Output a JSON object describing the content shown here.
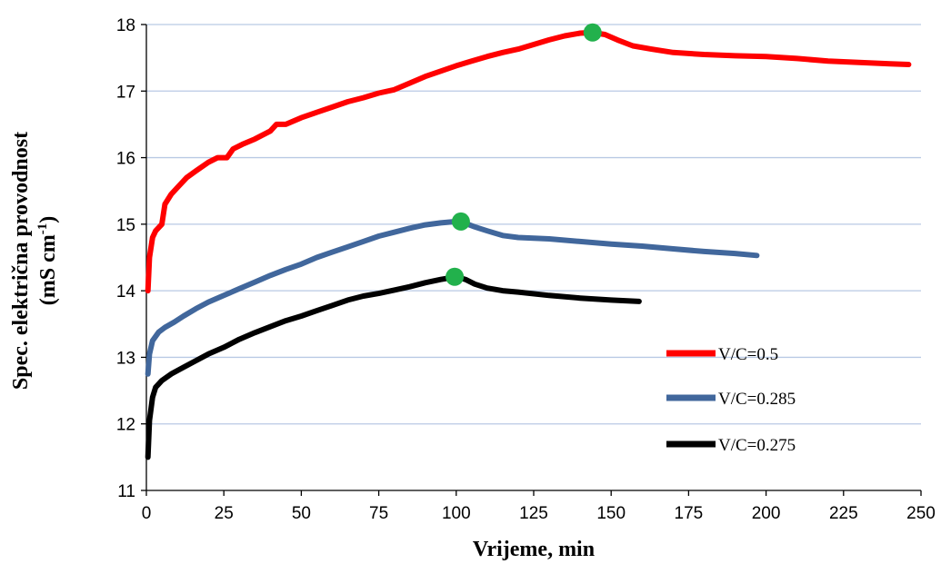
{
  "chart_data": {
    "type": "line",
    "xlabel": "Vrijeme, min",
    "ylabel_line1": "Spec. električna provodnost",
    "ylabel_line2_pre": "(mS cm",
    "ylabel_line2_sup": "-1",
    "ylabel_line2_post": ")",
    "xlim": [
      0,
      250
    ],
    "ylim": [
      11,
      18
    ],
    "xticks": [
      "0",
      "25",
      "50",
      "75",
      "100",
      "125",
      "150",
      "175",
      "200",
      "225",
      "250"
    ],
    "yticks": [
      "11",
      "12",
      "13",
      "14",
      "15",
      "16",
      "17",
      "18"
    ],
    "grid": "horizontal",
    "legend_position": "right",
    "series": [
      {
        "name": "V/C=0.5",
        "color": "#ff0000",
        "points": [
          [
            0.5,
            14.0
          ],
          [
            1,
            14.5
          ],
          [
            2,
            14.8
          ],
          [
            3,
            14.9
          ],
          [
            5,
            15.0
          ],
          [
            6,
            15.3
          ],
          [
            8,
            15.45
          ],
          [
            10,
            15.55
          ],
          [
            13,
            15.7
          ],
          [
            16,
            15.8
          ],
          [
            20,
            15.93
          ],
          [
            23,
            16.0
          ],
          [
            26,
            16.0
          ],
          [
            28,
            16.13
          ],
          [
            31,
            16.2
          ],
          [
            35,
            16.28
          ],
          [
            40,
            16.4
          ],
          [
            42,
            16.5
          ],
          [
            45,
            16.5
          ],
          [
            50,
            16.6
          ],
          [
            55,
            16.68
          ],
          [
            60,
            16.76
          ],
          [
            65,
            16.84
          ],
          [
            70,
            16.9
          ],
          [
            75,
            16.97
          ],
          [
            80,
            17.02
          ],
          [
            85,
            17.12
          ],
          [
            90,
            17.22
          ],
          [
            95,
            17.3
          ],
          [
            100,
            17.38
          ],
          [
            105,
            17.45
          ],
          [
            110,
            17.52
          ],
          [
            115,
            17.58
          ],
          [
            120,
            17.63
          ],
          [
            125,
            17.7
          ],
          [
            130,
            17.77
          ],
          [
            135,
            17.83
          ],
          [
            140,
            17.87
          ],
          [
            144,
            17.88
          ],
          [
            148,
            17.85
          ],
          [
            152,
            17.77
          ],
          [
            157,
            17.68
          ],
          [
            163,
            17.63
          ],
          [
            170,
            17.58
          ],
          [
            180,
            17.55
          ],
          [
            190,
            17.53
          ],
          [
            200,
            17.52
          ],
          [
            210,
            17.49
          ],
          [
            220,
            17.45
          ],
          [
            230,
            17.43
          ],
          [
            240,
            17.41
          ],
          [
            246,
            17.4
          ]
        ]
      },
      {
        "name": "V/C=0.285",
        "color": "#41679c",
        "points": [
          [
            0.5,
            12.75
          ],
          [
            1,
            13.05
          ],
          [
            2,
            13.25
          ],
          [
            4,
            13.38
          ],
          [
            6,
            13.45
          ],
          [
            9,
            13.53
          ],
          [
            12,
            13.62
          ],
          [
            16,
            13.73
          ],
          [
            20,
            13.83
          ],
          [
            25,
            13.93
          ],
          [
            30,
            14.03
          ],
          [
            35,
            14.13
          ],
          [
            40,
            14.23
          ],
          [
            45,
            14.32
          ],
          [
            50,
            14.4
          ],
          [
            55,
            14.5
          ],
          [
            60,
            14.58
          ],
          [
            65,
            14.66
          ],
          [
            70,
            14.74
          ],
          [
            75,
            14.82
          ],
          [
            80,
            14.88
          ],
          [
            85,
            14.94
          ],
          [
            90,
            14.99
          ],
          [
            95,
            15.02
          ],
          [
            100,
            15.04
          ],
          [
            102,
            15.03
          ],
          [
            106,
            14.96
          ],
          [
            110,
            14.9
          ],
          [
            115,
            14.83
          ],
          [
            120,
            14.8
          ],
          [
            130,
            14.78
          ],
          [
            140,
            14.74
          ],
          [
            150,
            14.7
          ],
          [
            160,
            14.67
          ],
          [
            170,
            14.63
          ],
          [
            180,
            14.59
          ],
          [
            190,
            14.56
          ],
          [
            197,
            14.53
          ]
        ]
      },
      {
        "name": "V/C=0.275",
        "color": "#000000",
        "points": [
          [
            0.5,
            11.5
          ],
          [
            1,
            12.05
          ],
          [
            2,
            12.4
          ],
          [
            3,
            12.55
          ],
          [
            5,
            12.65
          ],
          [
            8,
            12.75
          ],
          [
            12,
            12.85
          ],
          [
            16,
            12.95
          ],
          [
            20,
            13.05
          ],
          [
            25,
            13.15
          ],
          [
            30,
            13.27
          ],
          [
            35,
            13.37
          ],
          [
            40,
            13.46
          ],
          [
            45,
            13.55
          ],
          [
            50,
            13.62
          ],
          [
            55,
            13.7
          ],
          [
            60,
            13.78
          ],
          [
            65,
            13.86
          ],
          [
            70,
            13.92
          ],
          [
            75,
            13.96
          ],
          [
            80,
            14.01
          ],
          [
            85,
            14.06
          ],
          [
            90,
            14.12
          ],
          [
            95,
            14.17
          ],
          [
            100,
            14.21
          ],
          [
            103,
            14.17
          ],
          [
            106,
            14.1
          ],
          [
            110,
            14.04
          ],
          [
            115,
            14.0
          ],
          [
            120,
            13.98
          ],
          [
            130,
            13.93
          ],
          [
            140,
            13.89
          ],
          [
            150,
            13.86
          ],
          [
            159,
            13.84
          ]
        ]
      }
    ],
    "markers": [
      {
        "x": 144,
        "y": 17.88,
        "color": "#22b14c"
      },
      {
        "x": 101.5,
        "y": 15.04,
        "color": "#22b14c"
      },
      {
        "x": 99.5,
        "y": 14.21,
        "color": "#22b14c"
      }
    ]
  }
}
